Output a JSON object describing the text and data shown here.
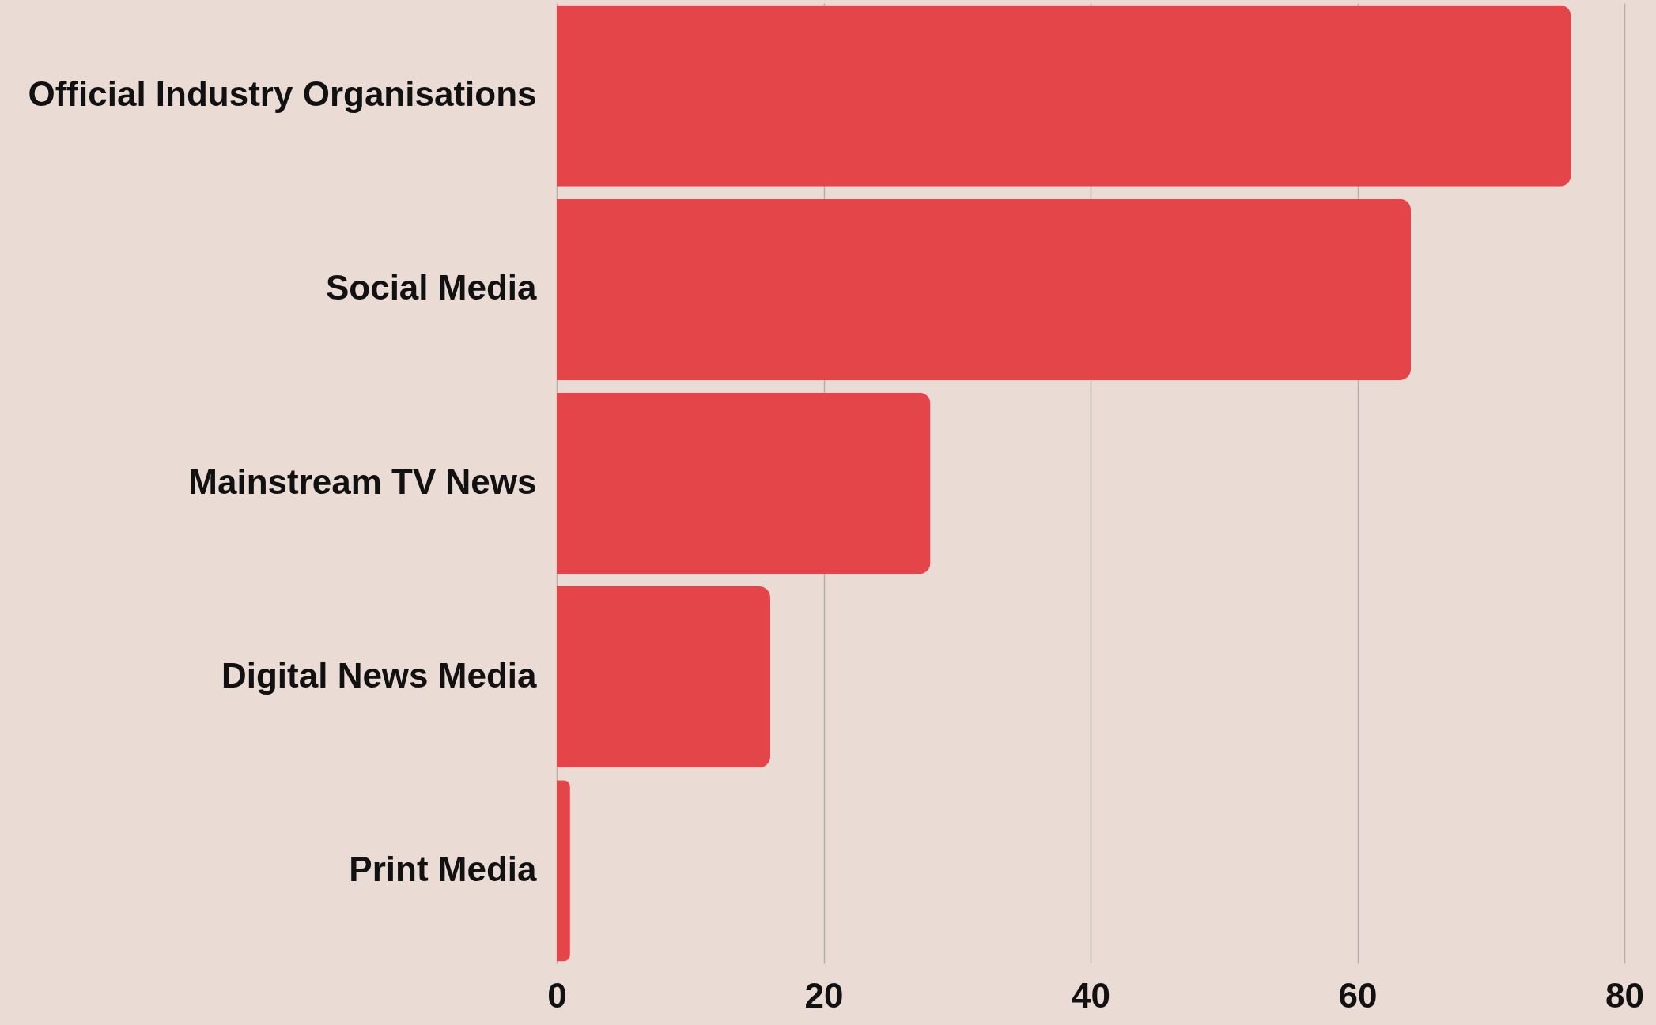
{
  "chart_data": {
    "type": "bar",
    "orientation": "horizontal",
    "categories": [
      "Official Industry Organisations",
      "Social Media",
      "Mainstream TV News",
      "Digital News Media",
      "Print Media"
    ],
    "values": [
      76,
      64,
      28,
      16,
      1
    ],
    "color": "#e44549",
    "xlim": [
      0,
      80
    ],
    "xticks": [
      0,
      20,
      40,
      60,
      80
    ],
    "grid": "x"
  }
}
